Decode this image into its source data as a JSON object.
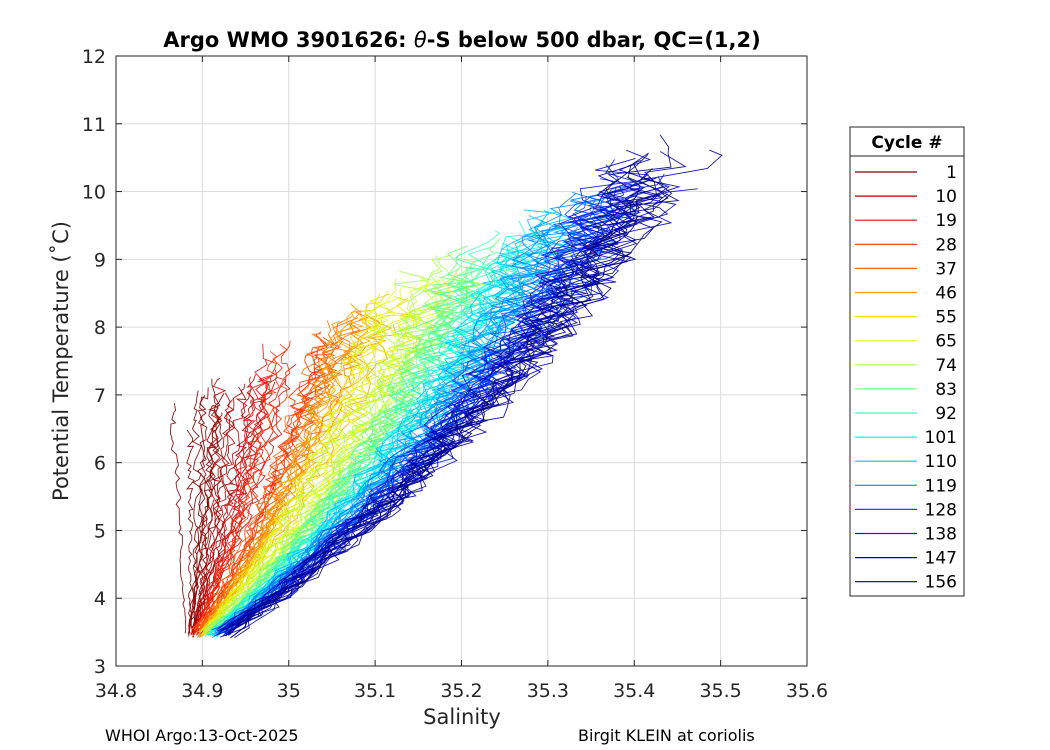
{
  "chart_data": {
    "type": "line",
    "title_main": "Argo WMO 3901626: ",
    "title_theta": "θ",
    "title_rest": "-S below 500 dbar,  QC=(1,2)",
    "xlabel": "Salinity",
    "ylabel": "Potential Temperature (˚C)",
    "xlim": [
      34.8,
      35.6
    ],
    "ylim": [
      3,
      12
    ],
    "x_ticks": [
      "34.8",
      "34.9",
      "35",
      "35.1",
      "35.2",
      "35.3",
      "35.4",
      "35.5",
      "35.6"
    ],
    "y_ticks": [
      "3",
      "4",
      "5",
      "6",
      "7",
      "8",
      "9",
      "10",
      "11",
      "12"
    ],
    "grid": true,
    "legend": {
      "title": "Cycle #",
      "placement": "right",
      "entries": [
        {
          "label": "1",
          "color": "#7f0000"
        },
        {
          "label": "10",
          "color": "#b00000"
        },
        {
          "label": "19",
          "color": "#e01010"
        },
        {
          "label": "28",
          "color": "#ff3000"
        },
        {
          "label": "37",
          "color": "#ff6a00"
        },
        {
          "label": "46",
          "color": "#ffa000"
        },
        {
          "label": "55",
          "color": "#f0e000"
        },
        {
          "label": "65",
          "color": "#d8ff20"
        },
        {
          "label": "74",
          "color": "#a8ff50"
        },
        {
          "label": "83",
          "color": "#70ff80"
        },
        {
          "label": "92",
          "color": "#40ffb8"
        },
        {
          "label": "101",
          "color": "#10f0f0"
        },
        {
          "label": "110",
          "color": "#00c0ff"
        },
        {
          "label": "119",
          "color": "#0088ff"
        },
        {
          "label": "128",
          "color": "#0050ff"
        },
        {
          "label": "138",
          "color": "#0020e0"
        },
        {
          "label": "147",
          "color": "#0000b0"
        },
        {
          "label": "156",
          "color": "#00008f"
        }
      ]
    }
  },
  "footer": {
    "left": "WHOI Argo:13-Oct-2025",
    "right": "Birgit KLEIN at coriolis"
  }
}
